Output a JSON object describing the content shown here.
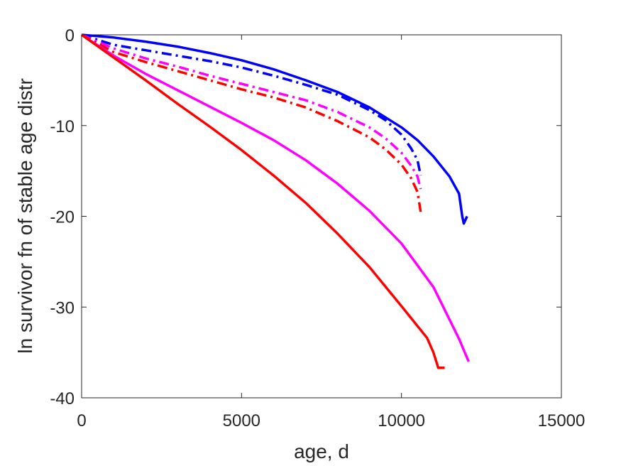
{
  "chart_data": {
    "type": "line",
    "title": "",
    "xlabel": "age, d",
    "ylabel": "ln survivor fn of stable age distr",
    "xlim": [
      0,
      15000
    ],
    "ylim": [
      -40,
      0
    ],
    "xticks": [
      0,
      5000,
      10000,
      15000
    ],
    "yticks": [
      0,
      -10,
      -20,
      -30,
      -40
    ],
    "xtick_labels": [
      "0",
      "5000",
      "10000",
      "15000"
    ],
    "ytick_labels": [
      "0",
      "-10",
      "-20",
      "-30",
      "-40"
    ],
    "grid": false,
    "legend": "none",
    "series": [
      {
        "color": "#0000ff",
        "style": "solid",
        "x": [
          0,
          1000,
          2000,
          3000,
          4000,
          5000,
          6000,
          7000,
          8000,
          9000,
          10000,
          10500,
          11000,
          11500,
          11800,
          11900,
          11950,
          12050
        ],
        "y": [
          0,
          -0.3,
          -0.75,
          -1.3,
          -2.0,
          -2.8,
          -3.8,
          -5.0,
          -6.3,
          -8.0,
          -10.2,
          -11.6,
          -13.4,
          -15.6,
          -17.5,
          -20.0,
          -20.8,
          -20.0
        ]
      },
      {
        "color": "#0000ff",
        "style": "dashdot",
        "x": [
          0,
          1000,
          2000,
          3000,
          4000,
          5000,
          6000,
          7000,
          8000,
          9000,
          9500,
          10000,
          10300,
          10500,
          10600
        ],
        "y": [
          0,
          -1.1,
          -1.7,
          -2.3,
          -2.9,
          -3.6,
          -4.5,
          -5.5,
          -6.6,
          -8.3,
          -9.4,
          -11.0,
          -12.5,
          -13.8,
          -15.5
        ]
      },
      {
        "color": "#ff00ff",
        "style": "dashdot",
        "x": [
          0,
          1000,
          2000,
          3000,
          4000,
          5000,
          6000,
          7000,
          8000,
          9000,
          9500,
          10000,
          10300,
          10500,
          10600
        ],
        "y": [
          0,
          -1.5,
          -2.6,
          -3.5,
          -4.5,
          -5.4,
          -6.3,
          -7.2,
          -8.5,
          -10.2,
          -11.4,
          -13.0,
          -14.4,
          -15.6,
          -17.0
        ]
      },
      {
        "color": "#ff0000",
        "style": "dashdot",
        "x": [
          0,
          1000,
          2000,
          3000,
          4000,
          5000,
          6000,
          7000,
          8000,
          9000,
          9500,
          10000,
          10300,
          10500,
          10600
        ],
        "y": [
          0,
          -1.9,
          -3.0,
          -4.0,
          -5.0,
          -6.0,
          -6.9,
          -8.0,
          -9.5,
          -11.3,
          -12.6,
          -14.3,
          -15.8,
          -17.3,
          -19.5
        ]
      },
      {
        "color": "#ff00ff",
        "style": "solid",
        "x": [
          0,
          1000,
          2000,
          3000,
          4000,
          5000,
          6000,
          7000,
          8000,
          9000,
          10000,
          11000,
          11800,
          12100
        ],
        "y": [
          0,
          -2.3,
          -4.3,
          -6.1,
          -7.9,
          -9.7,
          -11.6,
          -13.8,
          -16.4,
          -19.4,
          -23.0,
          -27.8,
          -33.5,
          -36.0
        ]
      },
      {
        "color": "#ff0000",
        "style": "solid",
        "x": [
          0,
          1000,
          2000,
          3000,
          4000,
          5000,
          6000,
          7000,
          8000,
          9000,
          10000,
          10800,
          11000,
          11150,
          11350
        ],
        "y": [
          0,
          -2.5,
          -5.0,
          -7.6,
          -10.1,
          -12.7,
          -15.5,
          -18.5,
          -21.9,
          -25.6,
          -29.9,
          -33.4,
          -35.0,
          -36.7,
          -36.7
        ]
      }
    ]
  }
}
